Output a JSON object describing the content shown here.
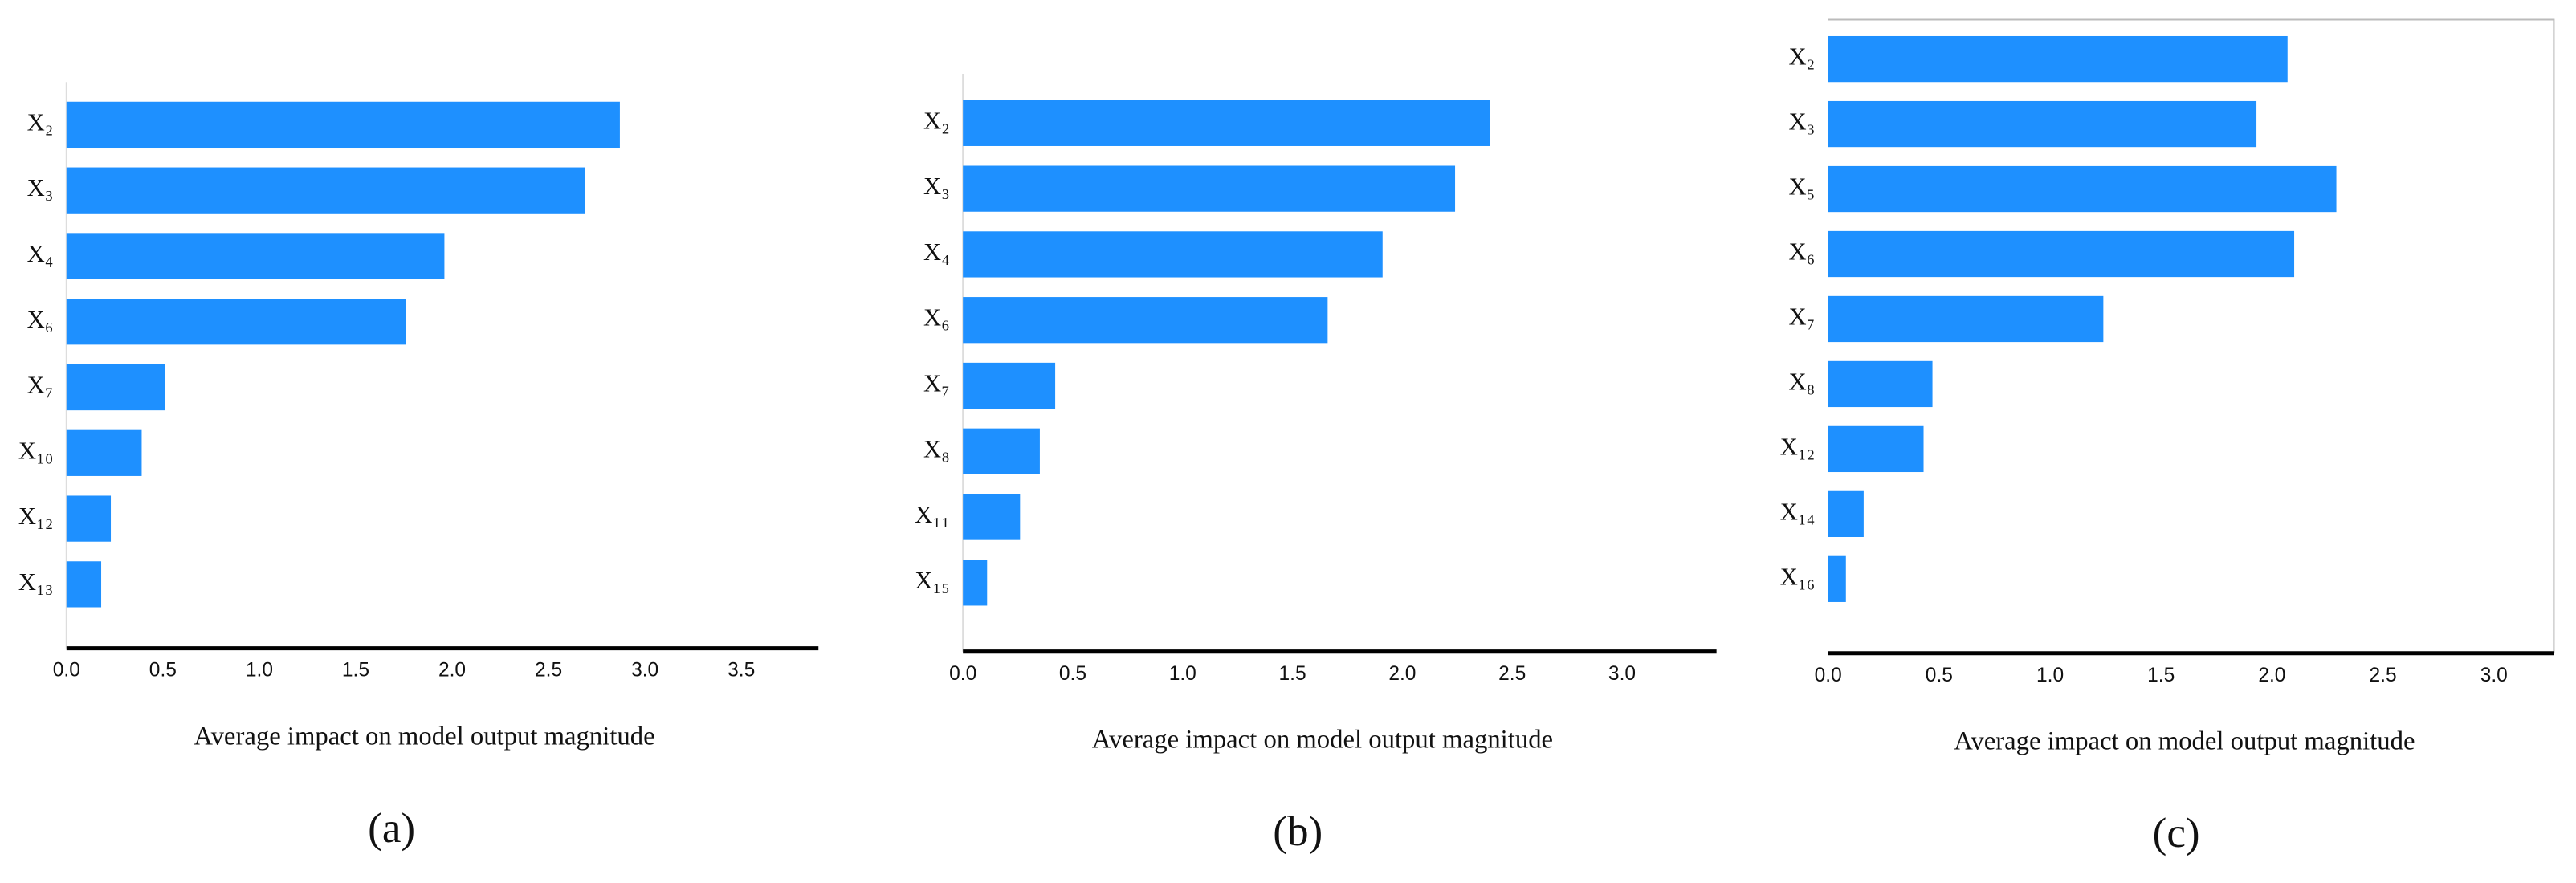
{
  "chart_data": [
    {
      "type": "barh",
      "panel_label": "(a)",
      "xlabel": "Average impact on model output magnitude",
      "categories": [
        "X₂",
        "X₃",
        "X₄",
        "X₆",
        "X₇",
        "X₁₀",
        "X₁₂",
        "X₁₃"
      ],
      "values": [
        2.87,
        2.69,
        1.96,
        1.76,
        0.51,
        0.39,
        0.23,
        0.18
      ],
      "color": "#1e90ff",
      "xlim": [
        0,
        3.9
      ],
      "xticks": [
        {
          "value": 0,
          "label": "0.0"
        },
        {
          "value": 0.5,
          "label": "0.5"
        },
        {
          "value": 1,
          "label": "1.0"
        },
        {
          "value": 1.5,
          "label": "1.5"
        },
        {
          "value": 2,
          "label": "2.0"
        },
        {
          "value": 2.5,
          "label": "2.5"
        },
        {
          "value": 3,
          "label": "3.0"
        },
        {
          "value": 3.5,
          "label": "3.5"
        }
      ]
    },
    {
      "type": "barh",
      "panel_label": "(b)",
      "xlabel": "Average impact on model output magnitude",
      "categories": [
        "X₂",
        "X₃",
        "X₄",
        "X₆",
        "X₇",
        "X₈",
        "X₁₁",
        "X₁₅"
      ],
      "values": [
        2.4,
        2.24,
        1.91,
        1.66,
        0.42,
        0.35,
        0.26,
        0.11
      ],
      "color": "#1e90ff",
      "xlim": [
        0,
        3.43
      ],
      "xticks": [
        {
          "value": 0,
          "label": "0.0"
        },
        {
          "value": 0.5,
          "label": "0.5"
        },
        {
          "value": 1,
          "label": "1.0"
        },
        {
          "value": 1.5,
          "label": "1.5"
        },
        {
          "value": 2,
          "label": "2.0"
        },
        {
          "value": 2.5,
          "label": "2.5"
        },
        {
          "value": 3,
          "label": "3.0"
        }
      ]
    },
    {
      "type": "barh",
      "panel_label": "(c)",
      "xlabel": "Average impact on model output magnitude",
      "categories": [
        "X₂",
        "X₃",
        "X₅",
        "X₆",
        "X₇",
        "X₈",
        "X₁₂",
        "X₁₄",
        "X₁₆"
      ],
      "values": [
        2.07,
        1.93,
        2.29,
        2.1,
        1.24,
        0.47,
        0.43,
        0.16,
        0.08
      ],
      "color": "#1e90ff",
      "xlim": [
        0,
        3.27
      ],
      "xticks": [
        {
          "value": 0,
          "label": "0.0"
        },
        {
          "value": 0.5,
          "label": "0.5"
        },
        {
          "value": 1,
          "label": "1.0"
        },
        {
          "value": 1.5,
          "label": "1.5"
        },
        {
          "value": 2,
          "label": "2.0"
        },
        {
          "value": 2.5,
          "label": "2.5"
        },
        {
          "value": 3,
          "label": "3.0"
        }
      ]
    }
  ]
}
